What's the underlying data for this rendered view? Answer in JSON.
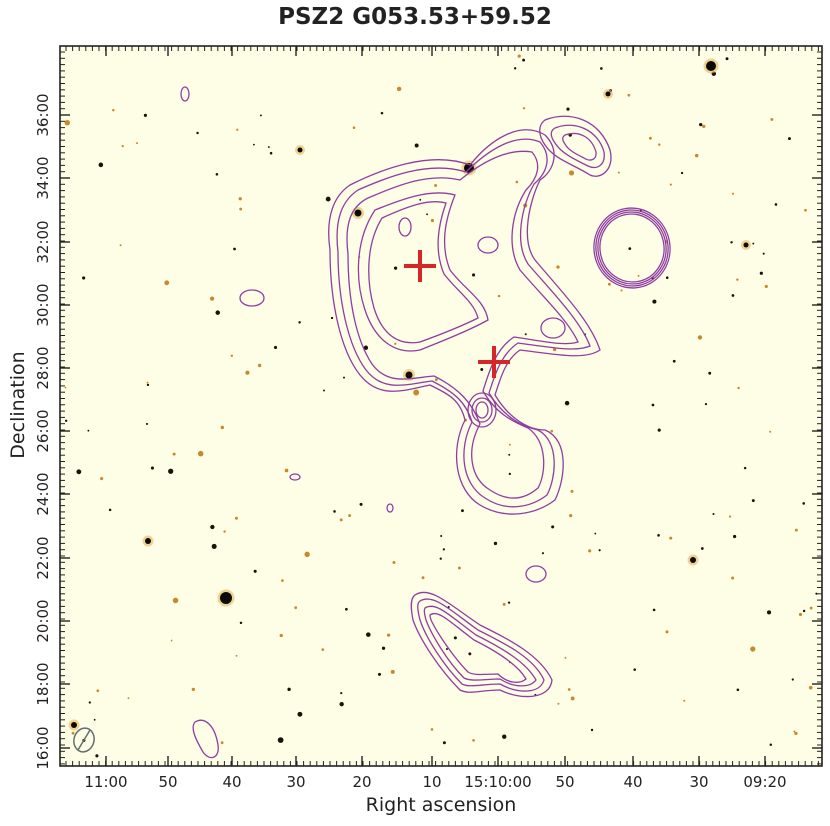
{
  "title": "PSZ2 G053.53+59.52",
  "x_label": "Right ascension",
  "y_label": "Declination",
  "ra_ticks": [
    "11:00",
    "50",
    "40",
    "30",
    "20",
    "10",
    "15:10:00",
    "50",
    "40",
    "30",
    "09:20"
  ],
  "dec_ticks": [
    "16:00",
    "18:00",
    "20:00",
    "22:00",
    "24:00",
    "26:00",
    "28:00",
    "30:00",
    "32:00",
    "34:00",
    "36:00"
  ],
  "colors": {
    "background": "#fefde6",
    "contour": "#8e3ea2",
    "marker": "#d62728",
    "beam": "#607070"
  },
  "icons": {
    "marker": "red-cross",
    "beam": "ellipse-with-diagonal"
  }
}
